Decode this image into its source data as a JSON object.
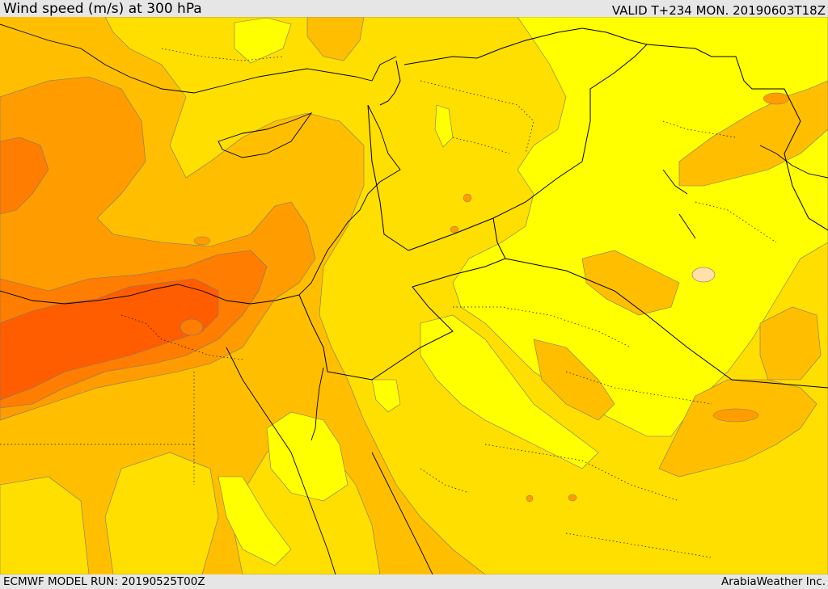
{
  "header": {
    "title": "Wind speed (m/s) at 300 hPa",
    "valid": "VALID T+234 MON. 20190603T18Z"
  },
  "footer": {
    "model_run": "ECMWF MODEL RUN: 20190525T00Z",
    "credit": "ArabiaWeather Inc."
  },
  "colors": {
    "very_light": "#ffe0a8",
    "yellow": "#ffff00",
    "light_gold": "#ffdf00",
    "gold": "#ffbf00",
    "orange": "#ff9d00",
    "dark_orange": "#ff7d00",
    "red_orange": "#ff5d00",
    "contour": "#777777",
    "border": "#000000"
  }
}
